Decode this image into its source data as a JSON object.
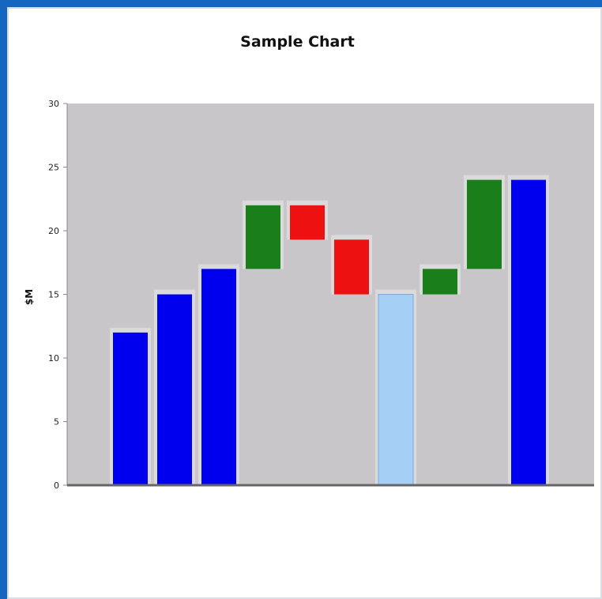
{
  "chart_data": {
    "type": "bar",
    "title": "Sample Chart",
    "xlabel": "",
    "ylabel": "$M",
    "ylim": [
      0,
      30
    ],
    "yticks": [
      0,
      5,
      10,
      15,
      20,
      25,
      30
    ],
    "categories": [
      "",
      "",
      "",
      "",
      "",
      "",
      "",
      "",
      "",
      ""
    ],
    "bars": [
      {
        "base": 0,
        "top": 12,
        "color": "#0000ee"
      },
      {
        "base": 0,
        "top": 15,
        "color": "#0000ee"
      },
      {
        "base": 0,
        "top": 17,
        "color": "#0000ee"
      },
      {
        "base": 17,
        "top": 22,
        "color": "#1a7f1a"
      },
      {
        "base": 19.3,
        "top": 22,
        "color": "#ee1111"
      },
      {
        "base": 15,
        "top": 19.3,
        "color": "#ee1111"
      },
      {
        "base": 0,
        "top": 15,
        "color": "#a6cff5"
      },
      {
        "base": 15,
        "top": 17,
        "color": "#1a7f1a"
      },
      {
        "base": 17,
        "top": 24,
        "color": "#1a7f1a"
      },
      {
        "base": 0,
        "top": 24,
        "color": "#0000ee"
      }
    ],
    "grid": false,
    "legend": "none",
    "colors": {
      "plot_bg": "#c8c6c8",
      "outer_bg": "#1466c0",
      "total": "#0000ee",
      "increase": "#1a7f1a",
      "decrease": "#ee1111",
      "subtotal": "#a6cff5"
    }
  }
}
